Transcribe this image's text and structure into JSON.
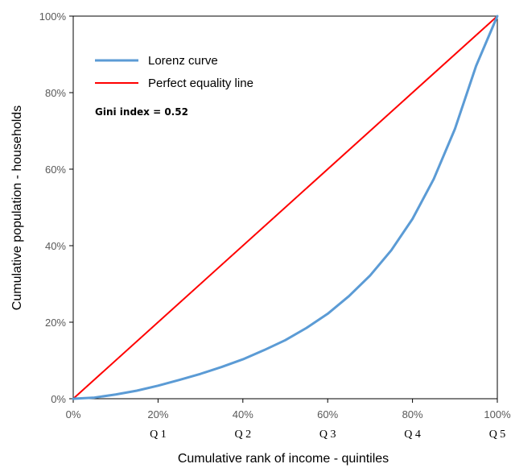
{
  "chart_data": {
    "type": "line",
    "xlabel": "Cumulative rank of income - quintiles",
    "ylabel": "Cumulative population - households",
    "xlim": [
      0,
      100
    ],
    "ylim": [
      0,
      100
    ],
    "x_ticks": [
      "0%",
      "20%",
      "40%",
      "60%",
      "80%",
      "100%"
    ],
    "y_ticks": [
      "0%",
      "20%",
      "40%",
      "60%",
      "80%",
      "100%"
    ],
    "quintile_labels": [
      "Q 1",
      "Q 2",
      "Q 3",
      "Q 4",
      "Q 5"
    ],
    "grid": false,
    "legend_position": "top-left",
    "annotation": "Gini index = 0.52",
    "series": [
      {
        "name": "Lorenz curve",
        "color": "#5b9bd5",
        "x": [
          0,
          5,
          10,
          15,
          20,
          25,
          30,
          35,
          40,
          45,
          50,
          55,
          60,
          65,
          70,
          75,
          80,
          85,
          90,
          95,
          100
        ],
        "y": [
          0,
          0.3,
          1.1,
          2.1,
          3.4,
          4.9,
          6.5,
          8.3,
          10.3,
          12.7,
          15.3,
          18.5,
          22.2,
          26.8,
          32.2,
          38.8,
          47.0,
          57.4,
          70.5,
          87.0,
          100
        ]
      },
      {
        "name": "Perfect equality line",
        "color": "#ff0000",
        "x": [
          0,
          100
        ],
        "y": [
          0,
          100
        ]
      }
    ]
  }
}
